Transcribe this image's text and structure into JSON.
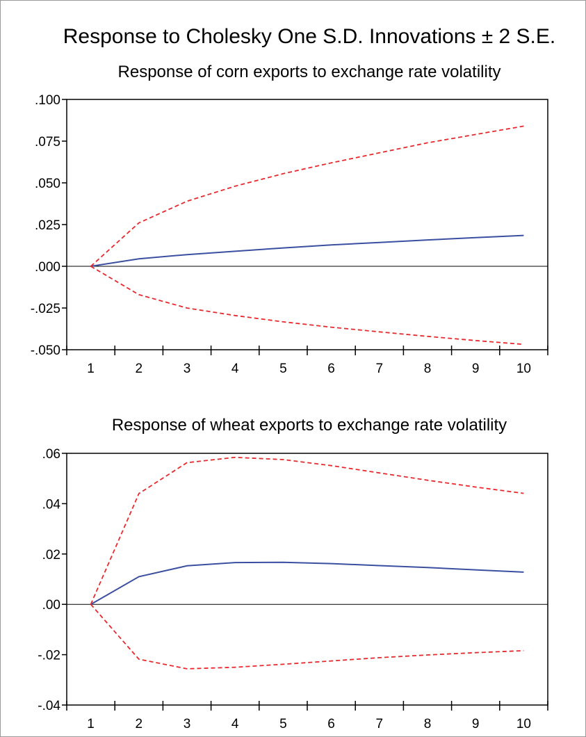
{
  "figure_title": "Response to Cholesky One S.D. Innovations ± 2 S.E.",
  "colors": {
    "response": "#3b4fa0",
    "bands": "#e8282c",
    "zero_line": "#000000",
    "axes": "#000000"
  },
  "chart_data": [
    {
      "type": "line",
      "title": "Response of corn exports to exchange rate volatility",
      "xlabel": "",
      "ylabel": "",
      "x": [
        1,
        2,
        3,
        4,
        5,
        6,
        7,
        8,
        9,
        10
      ],
      "xlim": [
        0.5,
        10.5
      ],
      "ylim": [
        -0.05,
        0.1
      ],
      "yticks": [
        0.1,
        0.075,
        0.05,
        0.025,
        0.0,
        -0.025,
        -0.05
      ],
      "ytick_labels": [
        ".100",
        ".075",
        ".050",
        ".025",
        ".000",
        "-.025",
        "-.050"
      ],
      "xtick_labels": [
        "1",
        "2",
        "3",
        "4",
        "5",
        "6",
        "7",
        "8",
        "9",
        "10"
      ],
      "grid": false,
      "legend": "none",
      "series": [
        {
          "role": "response",
          "style": "solid",
          "values": [
            0.0,
            0.0045,
            0.007,
            0.009,
            0.011,
            0.0128,
            0.0143,
            0.0158,
            0.0172,
            0.0185
          ]
        },
        {
          "role": "upper_band",
          "style": "dashed",
          "values": [
            0.0,
            0.026,
            0.039,
            0.048,
            0.0555,
            0.062,
            0.068,
            0.074,
            0.079,
            0.084
          ]
        },
        {
          "role": "lower_band",
          "style": "dashed",
          "values": [
            0.0,
            -0.017,
            -0.025,
            -0.0295,
            -0.0333,
            -0.0365,
            -0.0393,
            -0.042,
            -0.0445,
            -0.0468
          ]
        }
      ]
    },
    {
      "type": "line",
      "title": "Response of wheat exports to exchange rate volatility",
      "xlabel": "",
      "ylabel": "",
      "x": [
        1,
        2,
        3,
        4,
        5,
        6,
        7,
        8,
        9,
        10
      ],
      "xlim": [
        0.5,
        10.5
      ],
      "ylim": [
        -0.04,
        0.06
      ],
      "yticks": [
        0.06,
        0.04,
        0.02,
        0.0,
        -0.02,
        -0.04
      ],
      "ytick_labels": [
        ".06",
        ".04",
        ".02",
        ".00",
        "-.02",
        "-.04"
      ],
      "xtick_labels": [
        "1",
        "2",
        "3",
        "4",
        "5",
        "6",
        "7",
        "8",
        "9",
        "10"
      ],
      "grid": false,
      "legend": "none",
      "series": [
        {
          "role": "response",
          "style": "solid",
          "values": [
            0.0,
            0.011,
            0.0153,
            0.0166,
            0.0167,
            0.0162,
            0.0154,
            0.0146,
            0.0137,
            0.0128
          ]
        },
        {
          "role": "upper_band",
          "style": "dashed",
          "values": [
            0.0,
            0.044,
            0.0563,
            0.0584,
            0.0575,
            0.0551,
            0.0522,
            0.0493,
            0.0466,
            0.0441
          ]
        },
        {
          "role": "lower_band",
          "style": "dashed",
          "values": [
            0.0,
            -0.0218,
            -0.0256,
            -0.025,
            -0.0238,
            -0.0225,
            -0.0212,
            -0.0201,
            -0.0192,
            -0.0184
          ]
        }
      ]
    }
  ]
}
